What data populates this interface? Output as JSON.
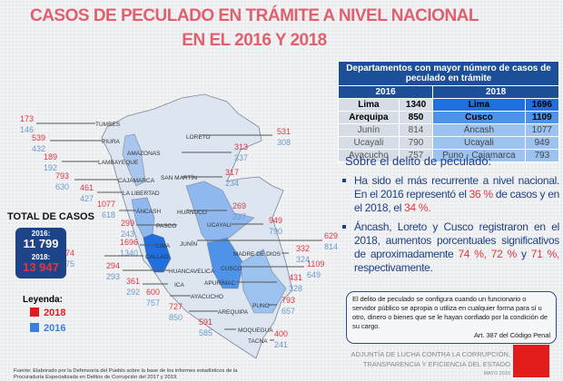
{
  "title": {
    "line1": "CASOS DE PECULADO EN TRÁMITE A NIVEL NACIONAL",
    "line2": "EN EL 2016 Y 2018"
  },
  "colors": {
    "v2018": "#e0363f",
    "v2016": "#6a9bc9",
    "title": "#e0606e",
    "navy": "#1d4488"
  },
  "departments": [
    {
      "name": "TUMBES",
      "v2018": 173,
      "v2016": 146
    },
    {
      "name": "PIURA",
      "v2018": 539,
      "v2016": 432
    },
    {
      "name": "LAMBAYEQUE",
      "v2018": 189,
      "v2016": 192
    },
    {
      "name": "CAJAMARCA",
      "v2018": 793,
      "v2016": 630
    },
    {
      "name": "LA LIBERTAD",
      "v2018": 461,
      "v2016": 427
    },
    {
      "name": "ÁNCASH",
      "v2018": 1077,
      "v2016": 618
    },
    {
      "name": "PASCO",
      "v2018": 299,
      "v2016": 243
    },
    {
      "name": "LIMA",
      "v2018": 1696,
      "v2016": 1340
    },
    {
      "name": "CALLAO",
      "v2018": 74,
      "v2016": 75
    },
    {
      "name": "HUANCAVELICA",
      "v2018": 294,
      "v2016": 293
    },
    {
      "name": "ICA",
      "v2018": 361,
      "v2016": 292
    },
    {
      "name": "AYACUCHO",
      "v2018": 600,
      "v2016": 757
    },
    {
      "name": "AREQUIPA",
      "v2018": 727,
      "v2016": 850
    },
    {
      "name": "MOQUEGUA",
      "v2018": 591,
      "v2016": 585
    },
    {
      "name": "LORETO",
      "v2018": 531,
      "v2016": 308
    },
    {
      "name": "AMAZONAS",
      "v2018": 313,
      "v2016": 337
    },
    {
      "name": "SAN MARTÍN",
      "v2018": 317,
      "v2016": 234
    },
    {
      "name": "HUÁNUCO",
      "v2018": 269,
      "v2016": 237
    },
    {
      "name": "UCAYALI",
      "v2018": 949,
      "v2016": 790
    },
    {
      "name": "JUNÍN",
      "v2018": 629,
      "v2016": 814
    },
    {
      "name": "MADRE DE DIOS",
      "v2018": 332,
      "v2016": 324
    },
    {
      "name": "CUSCO",
      "v2018": 1109,
      "v2016": 649
    },
    {
      "name": "APURÍMAC",
      "v2018": 431,
      "v2016": 328
    },
    {
      "name": "PUNO",
      "v2018": 793,
      "v2016": 657
    },
    {
      "name": "TACNA",
      "v2018": 400,
      "v2016": 241
    }
  ],
  "table": {
    "header": "Departamentos con mayor número de casos de peculado en trámite",
    "year2016": "2016",
    "year2018": "2018",
    "rows": [
      {
        "d16": "Lima",
        "n16": "1340",
        "d18": "Lima",
        "n18": "1696"
      },
      {
        "d16": "Arequipa",
        "n16": "850",
        "d18": "Cusco",
        "n18": "1109"
      },
      {
        "d16": "Junín",
        "n16": "814",
        "d18": "Áncash",
        "n18": "1077"
      },
      {
        "d16": "Ucayali",
        "n16": "790",
        "d18": "Ucayali",
        "n18": "949"
      },
      {
        "d16": "Ayacucho",
        "n16": "757",
        "d18": "Puno - Cajamarca",
        "n18": "793"
      }
    ]
  },
  "about": {
    "heading": "Sobre el delito de peculado:",
    "b1": {
      "t1": "Ha sido el más recurrente a nivel nacional. En el 2016 representó el ",
      "p1": "36 %",
      "t2": " de casos y en el 2018, el ",
      "p2": "34  %."
    },
    "b2": {
      "t1": "Áncash, Loreto y Cusco registraron en el 2018, aumentos porcentuales significativos de aproximadamente ",
      "p1": "74 %,",
      "t2": " ",
      "p2": "72 %",
      "t3": " y ",
      "p3": "71 %,",
      "t4": " respectivamente."
    }
  },
  "definition": {
    "text": "El delito de peculado se configura cuando un funcionario o servidor público se apropia o utiliza en cualquier forma para sí u otro, dinero o bienes que se le hayan confiado por la condición de su cargo.",
    "article": "Art. 387 del Código Penal"
  },
  "totals": {
    "heading": "TOTAL DE CASOS",
    "label2016": "2016:",
    "value2016": "11 799",
    "label2018": "2018:",
    "value2018": "13 947"
  },
  "legend": {
    "heading": "Leyenda:",
    "item2018": "2018",
    "item2016": "2016"
  },
  "footer": {
    "adjuntia1": "ADJUNTÍA DE LUCHA CONTRA LA CORRUPCIÓN,",
    "adjuntia2": "TRANSPARENCIA Y EFICIENCIA DEL ESTADO",
    "date": "MAYO 2019",
    "source1": "Fuente: Elaborado por la Defensoría del Pueblo  sobre la base de los informes estadísticos de la",
    "source2": "Procuraduría Especializada en Delitos de Corrupción del 2017 y 2019.",
    "logo_text": "DEFENSORÍA DEL PUEBLO"
  }
}
